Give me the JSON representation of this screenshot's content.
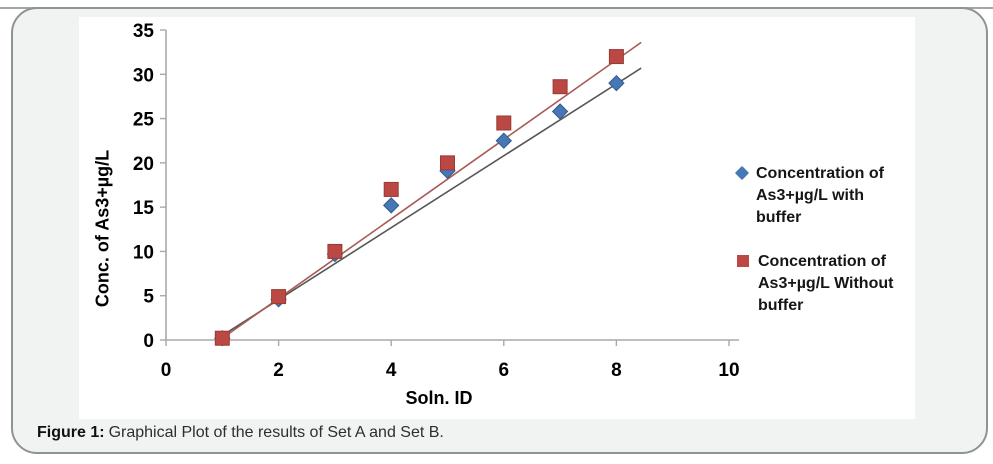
{
  "caption": {
    "label": "Figure 1:",
    "text": "Graphical Plot of the results of Set A and Set B."
  },
  "colors": {
    "card_background": "#f1f2f2",
    "card_border": "#8e9396",
    "top_rule": "#a3a7a9",
    "axis": "#a8a8a8",
    "tick_text": "#000000",
    "series_with_buffer": "#4678b6",
    "series_without_buffer": "#bb4843",
    "trendline_with_buffer": "#565656",
    "trendline_without_buffer": "#a85a56"
  },
  "chart_data": {
    "type": "scatter",
    "title": "",
    "xlabel": "Soln. ID",
    "ylabel": "Conc. of As3+µg/L",
    "xlim": [
      0,
      10
    ],
    "ylim": [
      0,
      35
    ],
    "x_ticks": [
      0,
      2,
      4,
      6,
      8,
      10
    ],
    "y_ticks": [
      0,
      5,
      10,
      15,
      20,
      25,
      30,
      35
    ],
    "grid": false,
    "legend_position": "right",
    "x": [
      1,
      2,
      3,
      4,
      5,
      6,
      7,
      8
    ],
    "series": [
      {
        "name": "Concentration of As3+µg/L with buffer",
        "marker": "diamond",
        "color": "#4678b6",
        "edge_color": "#315a92",
        "values": [
          0.2,
          4.6,
          9.7,
          15.2,
          19.1,
          22.5,
          25.8,
          29.0
        ],
        "trendline": {
          "x1": 0.95,
          "y1": 0.3,
          "x2": 8.44,
          "y2": 30.7,
          "color": "#565656"
        }
      },
      {
        "name": "Concentration of As3+µg/L Without buffer",
        "marker": "square",
        "color": "#bb4843",
        "edge_color": "#9a3a36",
        "values": [
          0.2,
          4.9,
          10.0,
          17.0,
          20.0,
          24.5,
          28.6,
          32.0
        ],
        "trendline": {
          "x1": 1.0,
          "y1": 0.2,
          "x2": 8.44,
          "y2": 33.6,
          "color": "#a85a56"
        }
      }
    ],
    "legend_entries": [
      {
        "marker": "diamond",
        "color": "#4678b6",
        "lines": [
          "Concentration of",
          "As3+µg/L with",
          "buffer"
        ]
      },
      {
        "marker": "square",
        "color": "#bb4843",
        "lines": [
          "Concentration of",
          "As3+µg/L Without",
          "buffer"
        ]
      }
    ]
  }
}
